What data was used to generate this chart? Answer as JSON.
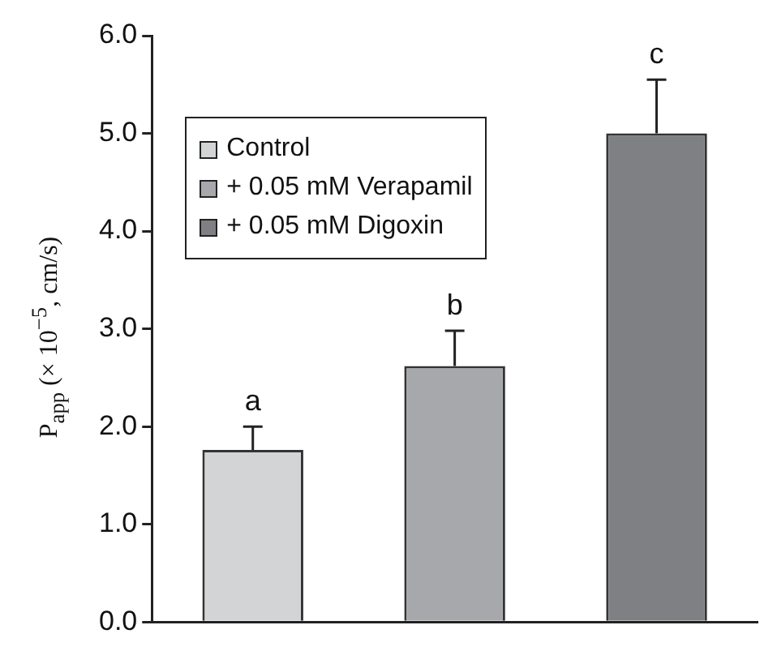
{
  "chart_data": {
    "type": "bar",
    "ylabel": "P$_{app}$ (× 10$^{−5}$, cm/s)",
    "categories": [
      null,
      null,
      null
    ],
    "series": [
      {
        "name": "Control",
        "color": "#d3d4d6",
        "values": [
          1.76,
          null,
          null
        ],
        "errors": [
          [
            1.76,
            2.0
          ],
          null,
          null
        ]
      },
      {
        "name": "+ 0.05 mM Verapamil",
        "color": "#a7a8ab",
        "values": [
          null,
          2.62,
          null
        ],
        "errors": [
          null,
          [
            2.62,
            2.98
          ],
          null
        ]
      },
      {
        "name": "+ 0.05 mM Digoxin",
        "color": "#7f8083",
        "values": [
          null,
          null,
          5.0
        ],
        "errors": [
          null,
          null,
          [
            5.0,
            5.55
          ]
        ]
      }
    ],
    "annotations": [
      {
        "text": "a",
        "y": 2.0
      },
      {
        "text": "b",
        "y": 2.98
      },
      {
        "text": "c",
        "y": 5.55
      }
    ],
    "ylim": [
      0,
      6
    ],
    "yticks": [
      {
        "value": 0,
        "label": "0.0"
      },
      {
        "value": 1,
        "label": "1.0"
      },
      {
        "value": 2,
        "label": "2.0"
      },
      {
        "value": 3,
        "label": "3.0"
      },
      {
        "value": 4,
        "label": "4.0"
      },
      {
        "value": 5,
        "label": "5.0"
      },
      {
        "value": 6,
        "label": "6.0"
      }
    ],
    "grid": false,
    "legend": "top left"
  }
}
